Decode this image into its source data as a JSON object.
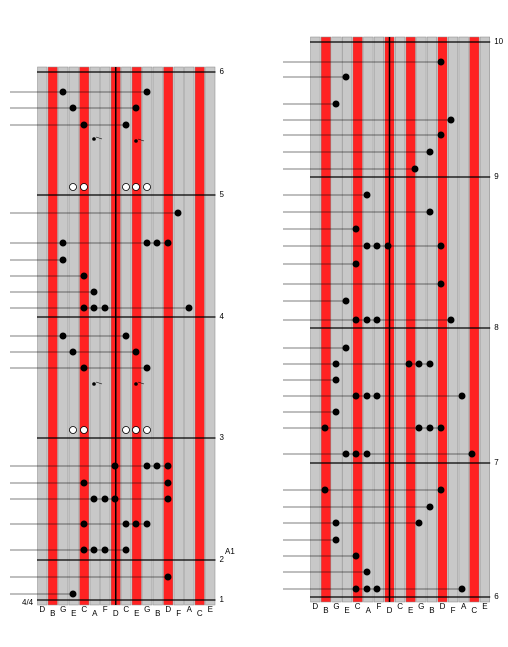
{
  "left_panel": {
    "key_labels": [
      "D",
      "B",
      "G",
      "E",
      "C",
      "A",
      "F",
      "D",
      "C",
      "E",
      "G",
      "B",
      "D",
      "F",
      "A",
      "C",
      "E"
    ],
    "measure_numbers": [
      "6",
      "5",
      "4",
      "3",
      "2",
      "1"
    ],
    "marker": "A1",
    "time_signature": "4/4"
  },
  "right_panel": {
    "key_labels": [
      "D",
      "B",
      "G",
      "E",
      "C",
      "A",
      "F",
      "D",
      "C",
      "E",
      "G",
      "B",
      "D",
      "F",
      "A",
      "C",
      "E"
    ],
    "measure_numbers": [
      "10",
      "9",
      "8",
      "7",
      "6"
    ]
  }
}
